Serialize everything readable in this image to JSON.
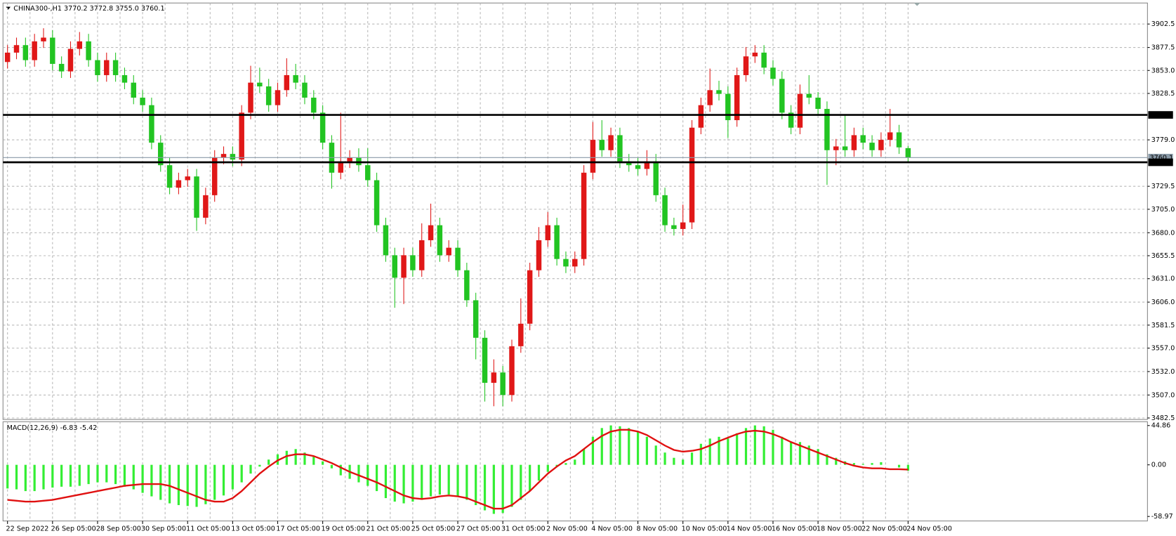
{
  "chart_data": {
    "type": "candlestick",
    "title": "CHINA300-,H1  3770.2 3772.8 3755.0 3760.1",
    "up_color": "#e01818",
    "down_color": "#22c422",
    "categories": [
      "22 Sep 2022",
      null,
      null,
      null,
      null,
      "26 Sep 05:00",
      null,
      null,
      null,
      null,
      "28 Sep 05:00",
      null,
      null,
      null,
      null,
      "30 Sep 05:00",
      null,
      null,
      null,
      null,
      "11 Oct 05:00",
      null,
      null,
      null,
      null,
      "13 Oct 05:00",
      null,
      null,
      null,
      null,
      "17 Oct 05:00",
      null,
      null,
      null,
      null,
      "19 Oct 05:00",
      null,
      null,
      null,
      null,
      "21 Oct 05:00",
      null,
      null,
      null,
      null,
      "25 Oct 05:00",
      null,
      null,
      null,
      null,
      "27 Oct 05:00",
      null,
      null,
      null,
      null,
      "31 Oct 05:00",
      null,
      null,
      null,
      null,
      "2 Nov 05:00",
      null,
      null,
      null,
      null,
      "4 Nov 05:00",
      null,
      null,
      null,
      null,
      "8 Nov 05:00",
      null,
      null,
      null,
      null,
      "10 Nov 05:00",
      null,
      null,
      null,
      null,
      "14 Nov 05:00",
      null,
      null,
      null,
      null,
      "16 Nov 05:00",
      null,
      null,
      null,
      null,
      "18 Nov 05:00",
      null,
      null,
      null,
      null,
      "22 Nov 05:00",
      null,
      null,
      null,
      null,
      "24 Nov 05:00"
    ],
    "open": [
      3862,
      3872,
      3880,
      3864,
      3884,
      3888,
      3860,
      3852,
      3876,
      3884,
      3864,
      3848,
      3864,
      3848,
      3840,
      3824,
      3816,
      3776,
      3752,
      3728,
      3736,
      3740,
      3696,
      3720,
      3760,
      3764,
      3758,
      3808,
      3840,
      3836,
      3816,
      3832,
      3848,
      3840,
      3824,
      3808,
      3776,
      3744,
      3756,
      3760,
      3752,
      3736,
      3688,
      3656,
      3632,
      3656,
      3640,
      3672,
      3688,
      3656,
      3664,
      3640,
      3608,
      3568,
      3520,
      3531,
      3507,
      3559,
      3583,
      3640,
      3672,
      3688,
      3652,
      3644,
      3652,
      3744,
      3779,
      3768,
      3784,
      3756,
      3752,
      3748,
      3756,
      3720,
      3688,
      3684,
      3691,
      3792,
      3816,
      3832,
      3828,
      3800,
      3848,
      3868,
      3872,
      3856,
      3844,
      3808,
      3792,
      3828,
      3824,
      3812,
      3768,
      3772,
      3768,
      3784,
      3776,
      3768,
      3779,
      3787,
      3770.2
    ],
    "high": [
      3880,
      3888,
      3888,
      3892,
      3898,
      3896,
      3868,
      3884,
      3894,
      3892,
      3872,
      3872,
      3872,
      3856,
      3848,
      3832,
      3824,
      3784,
      3760,
      3744,
      3748,
      3748,
      3728,
      3768,
      3772,
      3772,
      3816,
      3858,
      3856,
      3844,
      3840,
      3866,
      3860,
      3848,
      3832,
      3816,
      3784,
      3808,
      3768,
      3770,
      3770,
      3744,
      3696,
      3664,
      3664,
      3664,
      3690,
      3711,
      3696,
      3672,
      3672,
      3648,
      3616,
      3576,
      3545,
      3538,
      3566,
      3610,
      3648,
      3686,
      3702,
      3696,
      3660,
      3660,
      3752,
      3798,
      3800,
      3792,
      3792,
      3764,
      3760,
      3768,
      3764,
      3728,
      3696,
      3710,
      3800,
      3824,
      3855,
      3842,
      3836,
      3856,
      3878,
      3880,
      3880,
      3864,
      3852,
      3816,
      3838,
      3848,
      3830,
      3820,
      3780,
      3806,
      3792,
      3792,
      3784,
      3787,
      3812,
      3795,
      3772.8
    ],
    "low": [
      3855,
      3865,
      3857,
      3857,
      3877,
      3853,
      3845,
      3845,
      3869,
      3857,
      3841,
      3841,
      3841,
      3833,
      3817,
      3809,
      3769,
      3745,
      3721,
      3721,
      3729,
      3682,
      3689,
      3713,
      3753,
      3751,
      3751,
      3801,
      3829,
      3809,
      3809,
      3825,
      3833,
      3817,
      3801,
      3769,
      3727,
      3737,
      3749,
      3745,
      3729,
      3681,
      3649,
      3600,
      3604,
      3633,
      3633,
      3665,
      3649,
      3649,
      3633,
      3601,
      3545,
      3500,
      3495,
      3495,
      3500,
      3552,
      3576,
      3633,
      3665,
      3645,
      3637,
      3637,
      3645,
      3737,
      3761,
      3761,
      3749,
      3745,
      3741,
      3741,
      3713,
      3681,
      3677,
      3677,
      3684,
      3785,
      3809,
      3821,
      3781,
      3793,
      3841,
      3861,
      3849,
      3837,
      3801,
      3785,
      3785,
      3817,
      3805,
      3731,
      3752,
      3761,
      3761,
      3769,
      3761,
      3761,
      3772,
      3764,
      3755.0
    ],
    "close": [
      3872,
      3880,
      3864,
      3884,
      3888,
      3860,
      3852,
      3876,
      3884,
      3864,
      3848,
      3864,
      3848,
      3840,
      3824,
      3816,
      3776,
      3752,
      3728,
      3736,
      3740,
      3696,
      3720,
      3760,
      3764,
      3758,
      3808,
      3840,
      3836,
      3816,
      3832,
      3848,
      3840,
      3824,
      3808,
      3776,
      3744,
      3756,
      3760,
      3752,
      3736,
      3688,
      3656,
      3632,
      3656,
      3640,
      3672,
      3688,
      3656,
      3664,
      3640,
      3608,
      3568,
      3520,
      3531,
      3507,
      3559,
      3583,
      3640,
      3672,
      3688,
      3652,
      3644,
      3652,
      3744,
      3779,
      3768,
      3784,
      3756,
      3752,
      3748,
      3756,
      3720,
      3688,
      3684,
      3691,
      3792,
      3816,
      3832,
      3828,
      3800,
      3848,
      3868,
      3872,
      3856,
      3844,
      3808,
      3792,
      3828,
      3824,
      3812,
      3768,
      3772,
      3768,
      3784,
      3776,
      3768,
      3779,
      3787,
      3771,
      3760.1
    ],
    "ylim": [
      3480.9,
      3924.9
    ],
    "yticks": [
      3902.5,
      3877.5,
      {
        "value": 3853,
        "label": "3853.0"
      },
      3828.5,
      {
        "value": 3779,
        "label": "3779.0"
      },
      3729.5,
      {
        "value": 3705,
        "label": "3705.0"
      },
      {
        "value": 3680,
        "label": "3680.0"
      },
      3655.5,
      {
        "value": 3631,
        "label": "3631.0"
      },
      {
        "value": 3606,
        "label": "3606.0"
      },
      3581.5,
      {
        "value": 3557,
        "label": "3557.0"
      },
      {
        "value": 3532,
        "label": "3532.0"
      },
      {
        "value": 3507,
        "label": "3507.0"
      },
      3482.5
    ],
    "grid": true,
    "hlines": [
      3805.6,
      3755.1
    ],
    "hline_color": "#000000",
    "macd": {
      "title": "MACD(12,26,9) -6.83 -5.42",
      "ylim": [
        -64.1,
        49.2
      ],
      "yticks": [
        44.86,
        {
          "value": 0,
          "label": "0.00"
        },
        -58.97
      ],
      "histogram": {
        "color": "#33ee33",
        "values": [
          -27,
          -28,
          -30,
          -30,
          -28,
          -26,
          -25,
          -25,
          -24,
          -22,
          -20,
          -20,
          -22,
          -25,
          -28,
          -32,
          -36,
          -40,
          -44,
          -46,
          -47,
          -48,
          -45,
          -40,
          -35,
          -28,
          -20,
          -10,
          -2,
          6,
          12,
          16,
          18,
          14,
          10,
          4,
          -4,
          -12,
          -16,
          -20,
          -24,
          -30,
          -38,
          -42,
          -44,
          -42,
          -40,
          -36,
          -34,
          -34,
          -36,
          -40,
          -46,
          -52,
          -56,
          -55,
          -48,
          -40,
          -30,
          -18,
          -8,
          -2,
          2,
          6,
          18,
          32,
          42,
          45,
          44,
          42,
          38,
          32,
          22,
          14,
          8,
          6,
          14,
          24,
          30,
          32,
          30,
          36,
          42,
          45,
          44,
          40,
          32,
          26,
          26,
          22,
          18,
          12,
          8,
          4,
          2,
          1,
          2,
          3,
          0,
          -3,
          -6.83
        ]
      },
      "signal": {
        "color": "#e01010",
        "values": [
          -40,
          -41,
          -42,
          -42,
          -41,
          -40,
          -38,
          -36,
          -34,
          -32,
          -30,
          -28,
          -26,
          -24,
          -23,
          -22,
          -22,
          -22,
          -24,
          -28,
          -32,
          -36,
          -40,
          -42,
          -42,
          -38,
          -30,
          -20,
          -10,
          -2,
          5,
          10,
          12,
          12,
          10,
          6,
          2,
          -3,
          -8,
          -12,
          -16,
          -20,
          -25,
          -30,
          -35,
          -38,
          -39,
          -38,
          -36,
          -35,
          -36,
          -38,
          -42,
          -46,
          -50,
          -50,
          -46,
          -38,
          -30,
          -20,
          -10,
          -2,
          5,
          10,
          18,
          26,
          33,
          38,
          40,
          40,
          38,
          34,
          28,
          22,
          17,
          15,
          16,
          18,
          22,
          27,
          31,
          35,
          38,
          39,
          38,
          35,
          31,
          26,
          22,
          18,
          14,
          10,
          6,
          2,
          -1,
          -3,
          -4,
          -4,
          -5,
          -5,
          -5.42
        ]
      }
    }
  }
}
